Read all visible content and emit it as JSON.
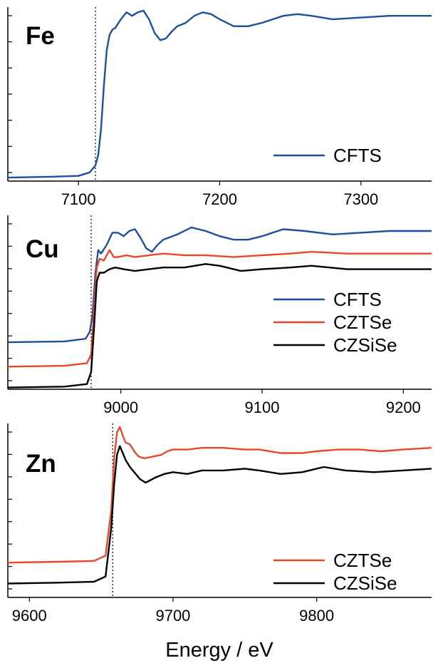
{
  "figure": {
    "xlabel": "Energy / eV"
  },
  "colors": {
    "CFTS": "#1f4e9e",
    "CZTSe": "#e8472a",
    "CZSiSe": "#000000"
  },
  "chart_data": [
    {
      "type": "line",
      "panel_label": "Fe",
      "xlim": [
        7050,
        7350
      ],
      "ylim": [
        0,
        1
      ],
      "xticks": [
        7100,
        7200,
        7300
      ],
      "xtick_labels": [
        "7100",
        "7200",
        "7300"
      ],
      "y_tick_count": 7,
      "y_tick_labels": "none",
      "edge_marker_x": 7112,
      "legend": [
        "CFTS"
      ],
      "legend_position": "bottom-right",
      "series": [
        {
          "name": "CFTS",
          "color": "#1f4e9e",
          "x": [
            7050,
            7080,
            7100,
            7108,
            7112,
            7114,
            7116,
            7118,
            7120,
            7122,
            7124,
            7126,
            7130,
            7134,
            7138,
            7142,
            7146,
            7150,
            7154,
            7158,
            7162,
            7166,
            7170,
            7176,
            7182,
            7188,
            7194,
            7200,
            7210,
            7220,
            7230,
            7245,
            7255,
            7265,
            7280,
            7300,
            7320,
            7350
          ],
          "y": [
            0.02,
            0.025,
            0.03,
            0.05,
            0.09,
            0.15,
            0.3,
            0.55,
            0.75,
            0.84,
            0.87,
            0.88,
            0.93,
            0.97,
            0.95,
            0.97,
            0.98,
            0.93,
            0.85,
            0.81,
            0.82,
            0.86,
            0.89,
            0.91,
            0.95,
            0.97,
            0.96,
            0.93,
            0.89,
            0.89,
            0.91,
            0.95,
            0.96,
            0.95,
            0.93,
            0.94,
            0.95,
            0.95
          ]
        }
      ]
    },
    {
      "type": "line",
      "panel_label": "Cu",
      "xlim": [
        8920,
        9220
      ],
      "ylim": [
        0,
        1
      ],
      "xticks": [
        9000,
        9100,
        9200
      ],
      "xtick_labels": [
        "9000",
        "9100",
        "9200"
      ],
      "y_tick_count": 8,
      "y_tick_labels": "none",
      "edge_marker_x": 8979,
      "legend": [
        "CFTS",
        "CZTSe",
        "CZSiSe"
      ],
      "legend_position": "bottom-right",
      "series": [
        {
          "name": "CFTS",
          "color": "#1f4e9e",
          "x": [
            8920,
            8960,
            8975,
            8978,
            8980,
            8982,
            8984,
            8986,
            8990,
            8994,
            8998,
            9002,
            9006,
            9010,
            9014,
            9018,
            9022,
            9026,
            9030,
            9040,
            9050,
            9060,
            9070,
            9080,
            9090,
            9100,
            9115,
            9130,
            9150,
            9170,
            9190,
            9220
          ],
          "y": [
            0.27,
            0.275,
            0.29,
            0.33,
            0.43,
            0.67,
            0.8,
            0.78,
            0.83,
            0.9,
            0.9,
            0.88,
            0.91,
            0.92,
            0.87,
            0.81,
            0.79,
            0.83,
            0.86,
            0.89,
            0.93,
            0.91,
            0.88,
            0.86,
            0.86,
            0.88,
            0.92,
            0.91,
            0.89,
            0.9,
            0.91,
            0.91
          ]
        },
        {
          "name": "CZTSe",
          "color": "#e8472a",
          "x": [
            8920,
            8960,
            8976,
            8979,
            8981,
            8983,
            8985,
            8988,
            8992,
            8995,
            8998,
            9004,
            9010,
            9020,
            9030,
            9045,
            9060,
            9080,
            9100,
            9120,
            9135,
            9160,
            9190,
            9220
          ],
          "y": [
            0.13,
            0.135,
            0.15,
            0.2,
            0.45,
            0.7,
            0.75,
            0.74,
            0.8,
            0.76,
            0.76,
            0.77,
            0.76,
            0.77,
            0.78,
            0.77,
            0.77,
            0.76,
            0.77,
            0.78,
            0.79,
            0.78,
            0.78,
            0.78
          ]
        },
        {
          "name": "CZSiSe",
          "color": "#000000",
          "x": [
            8920,
            8960,
            8976,
            8979,
            8981,
            8983,
            8985,
            8988,
            8992,
            8996,
            9002,
            9010,
            9020,
            9030,
            9045,
            9060,
            9070,
            9085,
            9100,
            9120,
            9135,
            9160,
            9190,
            9220
          ],
          "y": [
            0.01,
            0.015,
            0.03,
            0.1,
            0.35,
            0.62,
            0.67,
            0.67,
            0.69,
            0.7,
            0.69,
            0.68,
            0.69,
            0.7,
            0.7,
            0.72,
            0.71,
            0.68,
            0.69,
            0.7,
            0.71,
            0.69,
            0.69,
            0.69
          ]
        }
      ]
    },
    {
      "type": "line",
      "panel_label": "Zn",
      "xlim": [
        9585,
        9880
      ],
      "ylim": [
        0,
        1
      ],
      "xticks": [
        9600,
        9700,
        9800
      ],
      "xtick_labels": [
        "9600",
        "9700",
        "9800"
      ],
      "y_tick_count": 8,
      "y_tick_labels": "none",
      "edge_marker_x": 9658,
      "legend": [
        "CZTSe",
        "CZSiSe"
      ],
      "legend_position": "bottom-right",
      "series": [
        {
          "name": "CZTSe",
          "color": "#e8472a",
          "x": [
            9585,
            9620,
            9645,
            9653,
            9657,
            9659,
            9661,
            9663,
            9665,
            9667,
            9670,
            9673,
            9676,
            9680,
            9686,
            9692,
            9696,
            9700,
            9710,
            9720,
            9735,
            9750,
            9760,
            9775,
            9790,
            9800,
            9815,
            9830,
            9845,
            9860,
            9880
          ],
          "y": [
            0.2,
            0.205,
            0.21,
            0.24,
            0.5,
            0.8,
            0.95,
            0.98,
            0.93,
            0.89,
            0.88,
            0.84,
            0.81,
            0.8,
            0.81,
            0.82,
            0.84,
            0.85,
            0.85,
            0.86,
            0.86,
            0.85,
            0.85,
            0.83,
            0.83,
            0.84,
            0.85,
            0.85,
            0.84,
            0.85,
            0.86
          ]
        },
        {
          "name": "CZSiSe",
          "color": "#000000",
          "x": [
            9585,
            9620,
            9645,
            9653,
            9657,
            9659,
            9661,
            9663,
            9665,
            9667,
            9670,
            9673,
            9677,
            9681,
            9688,
            9694,
            9700,
            9710,
            9720,
            9735,
            9750,
            9760,
            9775,
            9790,
            9805,
            9820,
            9840,
            9860,
            9880
          ],
          "y": [
            0.08,
            0.085,
            0.09,
            0.12,
            0.4,
            0.65,
            0.82,
            0.87,
            0.83,
            0.79,
            0.75,
            0.72,
            0.68,
            0.66,
            0.69,
            0.71,
            0.72,
            0.71,
            0.73,
            0.73,
            0.74,
            0.73,
            0.71,
            0.72,
            0.75,
            0.73,
            0.72,
            0.73,
            0.74
          ]
        }
      ]
    }
  ]
}
